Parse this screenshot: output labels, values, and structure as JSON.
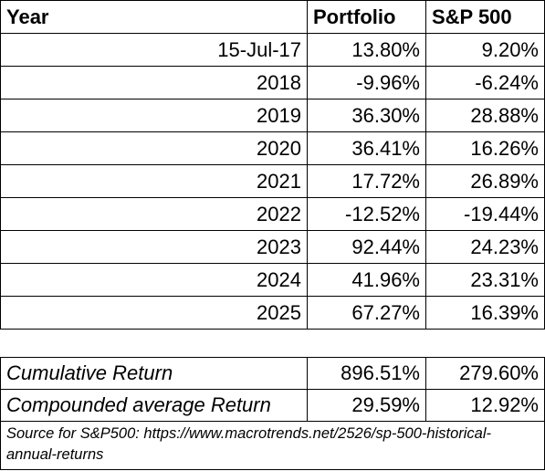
{
  "table": {
    "headers": [
      "Year",
      "Portfolio",
      "S&P 500"
    ],
    "rows": [
      {
        "year": "15-Jul-17",
        "portfolio": "13.80%",
        "sp500": "9.20%"
      },
      {
        "year": "2018",
        "portfolio": "-9.96%",
        "sp500": "-6.24%"
      },
      {
        "year": "2019",
        "portfolio": "36.30%",
        "sp500": "28.88%"
      },
      {
        "year": "2020",
        "portfolio": "36.41%",
        "sp500": "16.26%"
      },
      {
        "year": "2021",
        "portfolio": "17.72%",
        "sp500": "26.89%"
      },
      {
        "year": "2022",
        "portfolio": "-12.52%",
        "sp500": "-19.44%"
      },
      {
        "year": "2023",
        "portfolio": "92.44%",
        "sp500": "24.23%"
      },
      {
        "year": "2024",
        "portfolio": "41.96%",
        "sp500": "23.31%"
      },
      {
        "year": "2025",
        "portfolio": "67.27%",
        "sp500": "16.39%"
      }
    ]
  },
  "summary": {
    "rows": [
      {
        "label": "Cumulative Return",
        "portfolio": "896.51%",
        "sp500": "279.60%"
      },
      {
        "label": "Compounded average Return",
        "portfolio": "29.59%",
        "sp500": "12.92%"
      }
    ],
    "source": "Source for S&P500: https://www.macrotrends.net/2526/sp-500-historical-annual-returns"
  }
}
